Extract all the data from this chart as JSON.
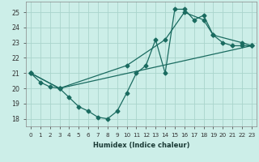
{
  "xlabel": "Humidex (Indice chaleur)",
  "bg_color": "#cceee8",
  "grid_color": "#aad4cc",
  "line_color": "#1a6b60",
  "xlim": [
    -0.5,
    23.5
  ],
  "ylim": [
    17.5,
    25.7
  ],
  "xticks": [
    0,
    1,
    2,
    3,
    4,
    5,
    6,
    7,
    8,
    9,
    10,
    11,
    12,
    13,
    14,
    15,
    16,
    17,
    18,
    19,
    20,
    21,
    22,
    23
  ],
  "yticks": [
    18,
    19,
    20,
    21,
    22,
    23,
    24,
    25
  ],
  "line1_x": [
    0,
    1,
    2,
    3,
    4,
    5,
    6,
    7,
    8,
    9,
    10,
    11,
    12,
    13,
    14,
    15,
    16,
    17,
    18,
    19,
    20,
    21,
    22,
    23
  ],
  "line1_y": [
    21.0,
    20.4,
    20.1,
    20.0,
    19.4,
    18.8,
    18.5,
    18.1,
    18.0,
    18.5,
    19.7,
    21.0,
    21.5,
    23.2,
    21.0,
    25.2,
    25.2,
    24.5,
    24.8,
    23.5,
    23.0,
    22.8,
    22.8,
    22.8
  ],
  "line2_x": [
    0,
    3,
    10,
    14,
    16,
    18,
    19,
    22,
    23
  ],
  "line2_y": [
    21.0,
    20.0,
    21.5,
    23.2,
    25.0,
    24.5,
    23.5,
    23.0,
    22.8
  ],
  "line3_x": [
    0,
    3,
    23
  ],
  "line3_y": [
    21.0,
    20.0,
    22.8
  ],
  "xlabel_fontsize": 6,
  "tick_fontsize": 5.2
}
